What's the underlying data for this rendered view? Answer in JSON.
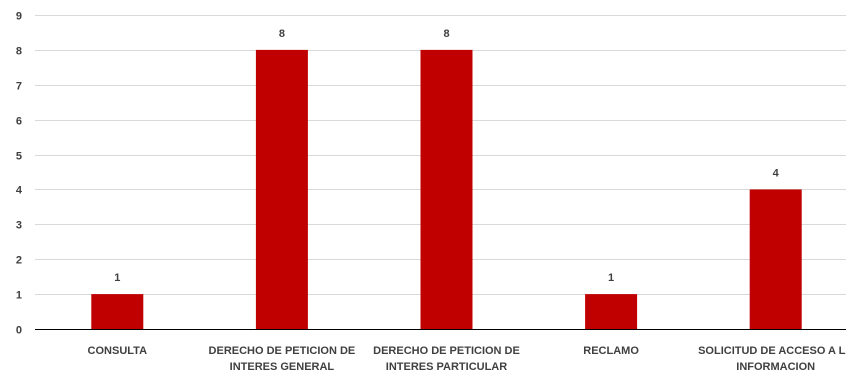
{
  "chart_data": {
    "type": "bar",
    "title": "",
    "xlabel": "",
    "ylabel": "",
    "categories": [
      [
        "CONSULTA"
      ],
      [
        "DERECHO DE PETICION DE",
        "INTERES GENERAL"
      ],
      [
        "DERECHO DE PETICION DE",
        "INTERES PARTICULAR"
      ],
      [
        "RECLAMO"
      ],
      [
        "SOLICITUD DE ACCESO A LA",
        "INFORMACION"
      ]
    ],
    "values": [
      1,
      8,
      8,
      1,
      4
    ],
    "ylim": [
      0,
      9
    ],
    "yticks": [
      0,
      1,
      2,
      3,
      4,
      5,
      6,
      7,
      8,
      9
    ],
    "grid": true,
    "legend": "none",
    "bar_color": "#c00000"
  }
}
